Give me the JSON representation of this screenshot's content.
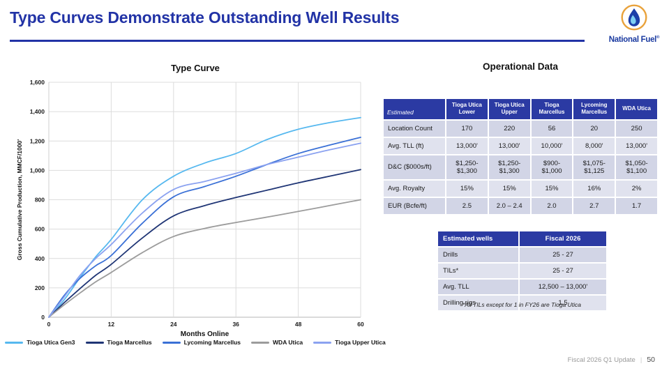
{
  "slide": {
    "title": "Type Curves Demonstrate Outstanding Well Results",
    "footer": {
      "label": "Fiscal 2026 Q1 Update",
      "separator": "|",
      "page": "50"
    }
  },
  "logo": {
    "brand": "National Fuel",
    "registered": "®"
  },
  "chart_data": {
    "type": "line",
    "title": "Type Curve",
    "xlabel": "Months Online",
    "ylabel": "Gross Cumulative Production, MMCF/1000'",
    "xlim": [
      0,
      60
    ],
    "ylim": [
      0,
      1600
    ],
    "x_ticks": [
      0,
      12,
      24,
      36,
      48,
      60
    ],
    "y_ticks": [
      0,
      200,
      400,
      600,
      800,
      1000,
      1200,
      1400,
      1600
    ],
    "grid": true,
    "legend_position": "bottom",
    "x": [
      0,
      3,
      6,
      9,
      12,
      18,
      24,
      30,
      36,
      42,
      48,
      54,
      60
    ],
    "series": [
      {
        "name": "Tioga Utica Gen3",
        "color": "#56b8ef",
        "values": [
          0,
          120,
          270,
          410,
          530,
          800,
          960,
          1050,
          1115,
          1210,
          1280,
          1325,
          1360
        ]
      },
      {
        "name": "Tioga Marcellus",
        "color": "#1f3575",
        "values": [
          0,
          100,
          195,
          285,
          360,
          540,
          690,
          760,
          815,
          865,
          915,
          960,
          1005
        ]
      },
      {
        "name": "Lycoming Marcellus",
        "color": "#3a70d6",
        "values": [
          0,
          150,
          265,
          350,
          420,
          640,
          820,
          890,
          960,
          1040,
          1115,
          1172,
          1225
        ]
      },
      {
        "name": "WDA Utica",
        "color": "#9c9c9c",
        "values": [
          0,
          85,
          165,
          240,
          305,
          440,
          550,
          605,
          645,
          682,
          720,
          760,
          800
        ]
      },
      {
        "name": "Tioga Upper Utica",
        "color": "#8ba2f0",
        "values": [
          0,
          140,
          285,
          400,
          495,
          710,
          870,
          925,
          980,
          1040,
          1090,
          1140,
          1185
        ]
      }
    ]
  },
  "operational": {
    "title": "Operational Data",
    "corner_label": "Estimated",
    "columns": [
      "Tioga Utica Lower",
      "Tioga Utica Upper",
      "Tioga Marcellus",
      "Lycoming Marcellus",
      "WDA Utica"
    ],
    "rows": [
      {
        "label": "Location Count",
        "values": [
          "170",
          "220",
          "56",
          "20",
          "250"
        ]
      },
      {
        "label": "Avg. TLL (ft)",
        "values": [
          "13,000'",
          "13,000'",
          "10,000'",
          "8,000'",
          "13,000'"
        ]
      },
      {
        "label": "D&C ($000s/ft)",
        "values": [
          "$1,250- $1,300",
          "$1,250- $1,300",
          "$900- $1,000",
          "$1,075- $1,125",
          "$1,050- $1,100"
        ]
      },
      {
        "label": "Avg. Royalty",
        "values": [
          "15%",
          "15%",
          "15%",
          "16%",
          "2%"
        ]
      },
      {
        "label": "EUR (Bcfe/ft)",
        "values": [
          "2.5",
          "2.0 – 2.4",
          "2.0",
          "2.7",
          "1.7"
        ]
      }
    ]
  },
  "estimated_wells": {
    "header": [
      "Estimated wells",
      "Fiscal 2026"
    ],
    "rows": [
      [
        "Drills",
        "25 - 27"
      ],
      [
        "TILs*",
        "25 - 27"
      ],
      [
        "Avg. TLL",
        "12,500 – 13,000'"
      ],
      [
        "Drilling rigs",
        "1.5"
      ]
    ],
    "footnote": "*All TILs except for 1 in FY26 are Tioga Utica"
  }
}
